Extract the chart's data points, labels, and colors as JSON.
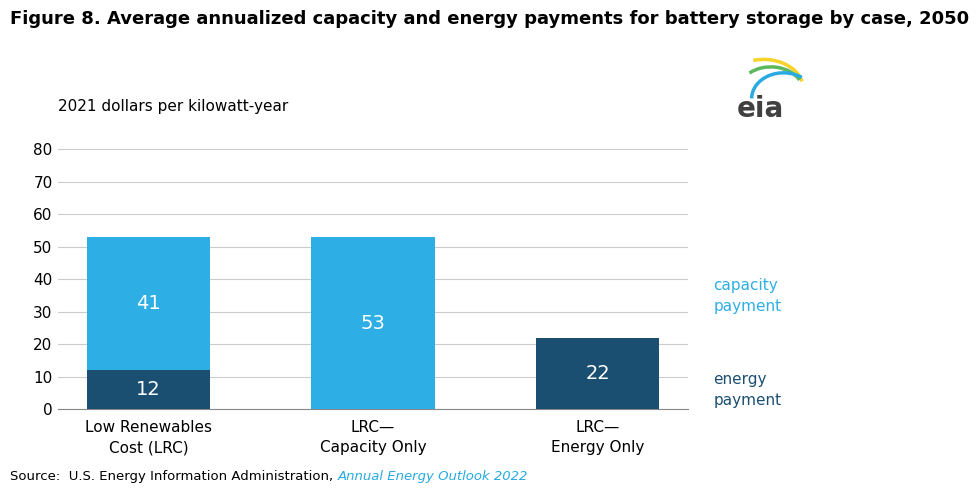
{
  "title": "Figure 8. Average annualized capacity and energy payments for battery storage by case, 2050",
  "ylabel": "2021 dollars per kilowatt-year",
  "categories": [
    "Low Renewables\nCost (LRC)",
    "LRC—\nCapacity Only",
    "LRC—\nEnergy Only"
  ],
  "energy_values": [
    12,
    0,
    22
  ],
  "capacity_values": [
    41,
    53,
    0
  ],
  "bar_width": 0.55,
  "ylim": [
    0,
    88
  ],
  "yticks": [
    0,
    10,
    20,
    30,
    40,
    50,
    60,
    70,
    80
  ],
  "energy_color": "#1b4f72",
  "capacity_color": "#2daee5",
  "label_energy": "energy\npayment",
  "label_capacity": "capacity\npayment",
  "label_color_capacity": "#2daee5",
  "label_color_energy": "#1b4f72",
  "bar_label_color": "white",
  "bar_label_fontsize": 14,
  "source_prefix": "Source:  U.S. Energy Information Administration, ",
  "source_link": "Annual Energy Outlook 2022",
  "background_color": "#ffffff",
  "title_fontsize": 13,
  "ylabel_fontsize": 11,
  "tick_fontsize": 11,
  "grid_color": "#cccccc",
  "spine_color": "#888888"
}
